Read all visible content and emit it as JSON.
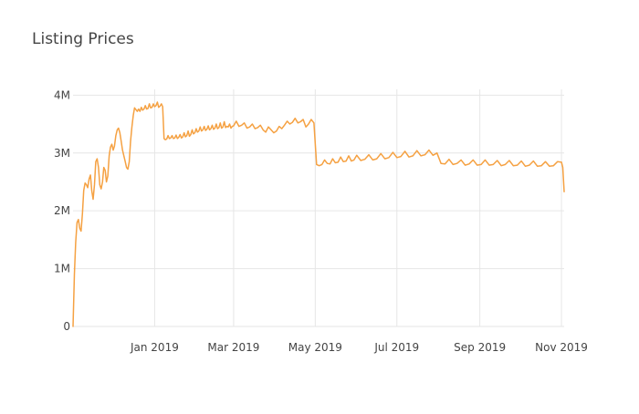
{
  "chart_data": {
    "type": "line",
    "title": "Listing Prices",
    "xlabel": "",
    "ylabel": "",
    "x_axis": {
      "range": [
        "2018-11-01",
        "2019-11-03"
      ],
      "ticks": [
        {
          "value": "2019-01-01",
          "label": "Jan 2019"
        },
        {
          "value": "2019-03-01",
          "label": "Mar 2019"
        },
        {
          "value": "2019-05-01",
          "label": "May 2019"
        },
        {
          "value": "2019-07-01",
          "label": "Jul 2019"
        },
        {
          "value": "2019-09-01",
          "label": "Sep 2019"
        },
        {
          "value": "2019-11-01",
          "label": "Nov 2019"
        }
      ]
    },
    "y_axis": {
      "range": [
        0,
        4100000
      ],
      "ticks": [
        {
          "value": 0,
          "label": "0"
        },
        {
          "value": 1000000,
          "label": "1M"
        },
        {
          "value": 2000000,
          "label": "2M"
        },
        {
          "value": 3000000,
          "label": "3M"
        },
        {
          "value": 4000000,
          "label": "4M"
        }
      ]
    },
    "grid": true,
    "legend": "none",
    "colors": {
      "line": "#f5a142",
      "grid": "#e6e6e6",
      "axis_text": "#444444"
    },
    "series": [
      {
        "name": "",
        "x": [
          "2018-11-01",
          "2018-11-02",
          "2018-11-03",
          "2018-11-04",
          "2018-11-05",
          "2018-11-06",
          "2018-11-07",
          "2018-11-08",
          "2018-11-09",
          "2018-11-10",
          "2018-11-11",
          "2018-11-12",
          "2018-11-13",
          "2018-11-14",
          "2018-11-15",
          "2018-11-16",
          "2018-11-17",
          "2018-11-18",
          "2018-11-19",
          "2018-11-20",
          "2018-11-21",
          "2018-11-22",
          "2018-11-23",
          "2018-11-24",
          "2018-11-25",
          "2018-11-26",
          "2018-11-27",
          "2018-11-28",
          "2018-11-29",
          "2018-11-30",
          "2018-12-01",
          "2018-12-02",
          "2018-12-03",
          "2018-12-04",
          "2018-12-05",
          "2018-12-06",
          "2018-12-07",
          "2018-12-08",
          "2018-12-09",
          "2018-12-10",
          "2018-12-11",
          "2018-12-12",
          "2018-12-13",
          "2018-12-14",
          "2018-12-15",
          "2018-12-16",
          "2018-12-17",
          "2018-12-18",
          "2018-12-19",
          "2018-12-20",
          "2018-12-21",
          "2018-12-22",
          "2018-12-23",
          "2018-12-24",
          "2018-12-25",
          "2018-12-26",
          "2018-12-27",
          "2018-12-28",
          "2018-12-29",
          "2018-12-30",
          "2018-12-31",
          "2019-01-01",
          "2019-01-02",
          "2019-01-03",
          "2019-01-04",
          "2019-01-05",
          "2019-01-06",
          "2019-01-07",
          "2019-01-08",
          "2019-01-09",
          "2019-01-10",
          "2019-01-11",
          "2019-01-12",
          "2019-01-13",
          "2019-01-14",
          "2019-01-15",
          "2019-01-16",
          "2019-01-17",
          "2019-01-18",
          "2019-01-19",
          "2019-01-20",
          "2019-01-21",
          "2019-01-22",
          "2019-01-23",
          "2019-01-24",
          "2019-01-25",
          "2019-01-26",
          "2019-01-27",
          "2019-01-28",
          "2019-01-29",
          "2019-01-30",
          "2019-01-31",
          "2019-02-01",
          "2019-02-02",
          "2019-02-03",
          "2019-02-04",
          "2019-02-05",
          "2019-02-06",
          "2019-02-07",
          "2019-02-08",
          "2019-02-09",
          "2019-02-10",
          "2019-02-11",
          "2019-02-12",
          "2019-02-13",
          "2019-02-14",
          "2019-02-15",
          "2019-02-16",
          "2019-02-17",
          "2019-02-18",
          "2019-02-19",
          "2019-02-20",
          "2019-02-21",
          "2019-02-22",
          "2019-02-23",
          "2019-02-24",
          "2019-02-25",
          "2019-02-26",
          "2019-02-27",
          "2019-02-28",
          "2019-03-01",
          "2019-03-03",
          "2019-03-05",
          "2019-03-07",
          "2019-03-09",
          "2019-03-11",
          "2019-03-13",
          "2019-03-15",
          "2019-03-17",
          "2019-03-19",
          "2019-03-21",
          "2019-03-23",
          "2019-03-25",
          "2019-03-27",
          "2019-03-29",
          "2019-03-31",
          "2019-04-02",
          "2019-04-04",
          "2019-04-06",
          "2019-04-08",
          "2019-04-10",
          "2019-04-12",
          "2019-04-14",
          "2019-04-16",
          "2019-04-18",
          "2019-04-20",
          "2019-04-22",
          "2019-04-24",
          "2019-04-26",
          "2019-04-28",
          "2019-04-30",
          "2019-05-02",
          "2019-05-04",
          "2019-05-06",
          "2019-05-08",
          "2019-05-10",
          "2019-05-12",
          "2019-05-14",
          "2019-05-16",
          "2019-05-18",
          "2019-05-20",
          "2019-05-22",
          "2019-05-24",
          "2019-05-26",
          "2019-05-28",
          "2019-05-30",
          "2019-06-01",
          "2019-06-04",
          "2019-06-07",
          "2019-06-10",
          "2019-06-13",
          "2019-06-16",
          "2019-06-19",
          "2019-06-22",
          "2019-06-25",
          "2019-06-28",
          "2019-07-01",
          "2019-07-04",
          "2019-07-07",
          "2019-07-10",
          "2019-07-13",
          "2019-07-16",
          "2019-07-19",
          "2019-07-22",
          "2019-07-25",
          "2019-07-28",
          "2019-07-31",
          "2019-08-03",
          "2019-08-06",
          "2019-08-09",
          "2019-08-12",
          "2019-08-15",
          "2019-08-18",
          "2019-08-21",
          "2019-08-24",
          "2019-08-27",
          "2019-08-30",
          "2019-09-02",
          "2019-09-05",
          "2019-09-08",
          "2019-09-11",
          "2019-09-14",
          "2019-09-17",
          "2019-09-20",
          "2019-09-23",
          "2019-09-26",
          "2019-09-29",
          "2019-10-02",
          "2019-10-05",
          "2019-10-08",
          "2019-10-11",
          "2019-10-14",
          "2019-10-17",
          "2019-10-20",
          "2019-10-23",
          "2019-10-26",
          "2019-10-29",
          "2019-11-01",
          "2019-11-02",
          "2019-11-03"
        ],
        "values": [
          0,
          900000,
          1450000,
          1800000,
          1850000,
          1700000,
          1650000,
          1950000,
          2350000,
          2480000,
          2450000,
          2400000,
          2550000,
          2620000,
          2350000,
          2200000,
          2450000,
          2850000,
          2900000,
          2750000,
          2450000,
          2380000,
          2500000,
          2750000,
          2700000,
          2500000,
          2600000,
          2950000,
          3100000,
          3150000,
          3050000,
          3120000,
          3300000,
          3400000,
          3430000,
          3350000,
          3200000,
          3050000,
          2950000,
          2850000,
          2750000,
          2720000,
          2850000,
          3200000,
          3450000,
          3650000,
          3780000,
          3750000,
          3720000,
          3760000,
          3720000,
          3790000,
          3740000,
          3760000,
          3820000,
          3760000,
          3770000,
          3850000,
          3780000,
          3790000,
          3850000,
          3800000,
          3820000,
          3880000,
          3790000,
          3810000,
          3850000,
          3800000,
          3250000,
          3230000,
          3240000,
          3300000,
          3250000,
          3260000,
          3300000,
          3250000,
          3260000,
          3310000,
          3250000,
          3270000,
          3320000,
          3260000,
          3280000,
          3350000,
          3280000,
          3300000,
          3380000,
          3290000,
          3320000,
          3400000,
          3330000,
          3350000,
          3420000,
          3360000,
          3380000,
          3450000,
          3380000,
          3400000,
          3460000,
          3390000,
          3410000,
          3470000,
          3400000,
          3420000,
          3480000,
          3410000,
          3430000,
          3500000,
          3420000,
          3440000,
          3520000,
          3430000,
          3450000,
          3540000,
          3440000,
          3460000,
          3450000,
          3500000,
          3430000,
          3460000,
          3470000,
          3550000,
          3460000,
          3480000,
          3520000,
          3430000,
          3450000,
          3500000,
          3420000,
          3440000,
          3480000,
          3400000,
          3360000,
          3450000,
          3400000,
          3350000,
          3380000,
          3460000,
          3420000,
          3480000,
          3550000,
          3500000,
          3530000,
          3600000,
          3520000,
          3540000,
          3580000,
          3450000,
          3500000,
          3580000,
          3520000,
          2800000,
          2780000,
          2800000,
          2880000,
          2820000,
          2810000,
          2900000,
          2830000,
          2840000,
          2930000,
          2850000,
          2860000,
          2950000,
          2860000,
          2880000,
          2960000,
          2870000,
          2890000,
          2970000,
          2880000,
          2900000,
          2990000,
          2900000,
          2920000,
          3010000,
          2920000,
          2940000,
          3030000,
          2930000,
          2950000,
          3040000,
          2950000,
          2970000,
          3050000,
          2960000,
          3000000,
          2820000,
          2810000,
          2890000,
          2800000,
          2820000,
          2880000,
          2790000,
          2810000,
          2880000,
          2790000,
          2800000,
          2880000,
          2790000,
          2800000,
          2870000,
          2780000,
          2800000,
          2870000,
          2780000,
          2790000,
          2860000,
          2770000,
          2790000,
          2860000,
          2770000,
          2780000,
          2850000,
          2770000,
          2780000,
          2850000,
          2840000,
          2750000,
          2330000
        ]
      }
    ]
  }
}
